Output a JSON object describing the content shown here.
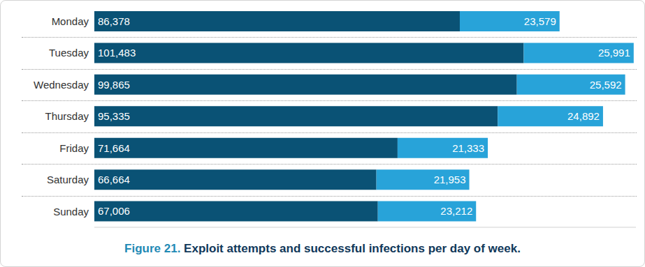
{
  "chart_data": {
    "type": "bar",
    "title": "Figure 21. Exploit attempts and successful infections per day of week.",
    "orientation": "horizontal",
    "stacked": true,
    "data_labels": true,
    "tick_labels": "y",
    "categories": [
      "Monday",
      "Tuesday",
      "Wednesday",
      "Thursday",
      "Friday",
      "Saturday",
      "Sunday"
    ],
    "xlim": [
      0,
      128000
    ],
    "series": [
      {
        "color": "#0a5275",
        "values": [
          86378,
          101483,
          99865,
          95335,
          71664,
          66664,
          67006
        ],
        "value_labels": [
          "86,378",
          "101,483",
          "99,865",
          "95,335",
          "71,664",
          "66,664",
          "67,006"
        ]
      },
      {
        "color": "#28a3d9",
        "values": [
          23579,
          25991,
          25592,
          24892,
          21333,
          21953,
          23212
        ],
        "value_labels": [
          "23,579",
          "25,991",
          "25,592",
          "24,892",
          "21,333",
          "21,953",
          "23,212"
        ]
      }
    ]
  }
}
